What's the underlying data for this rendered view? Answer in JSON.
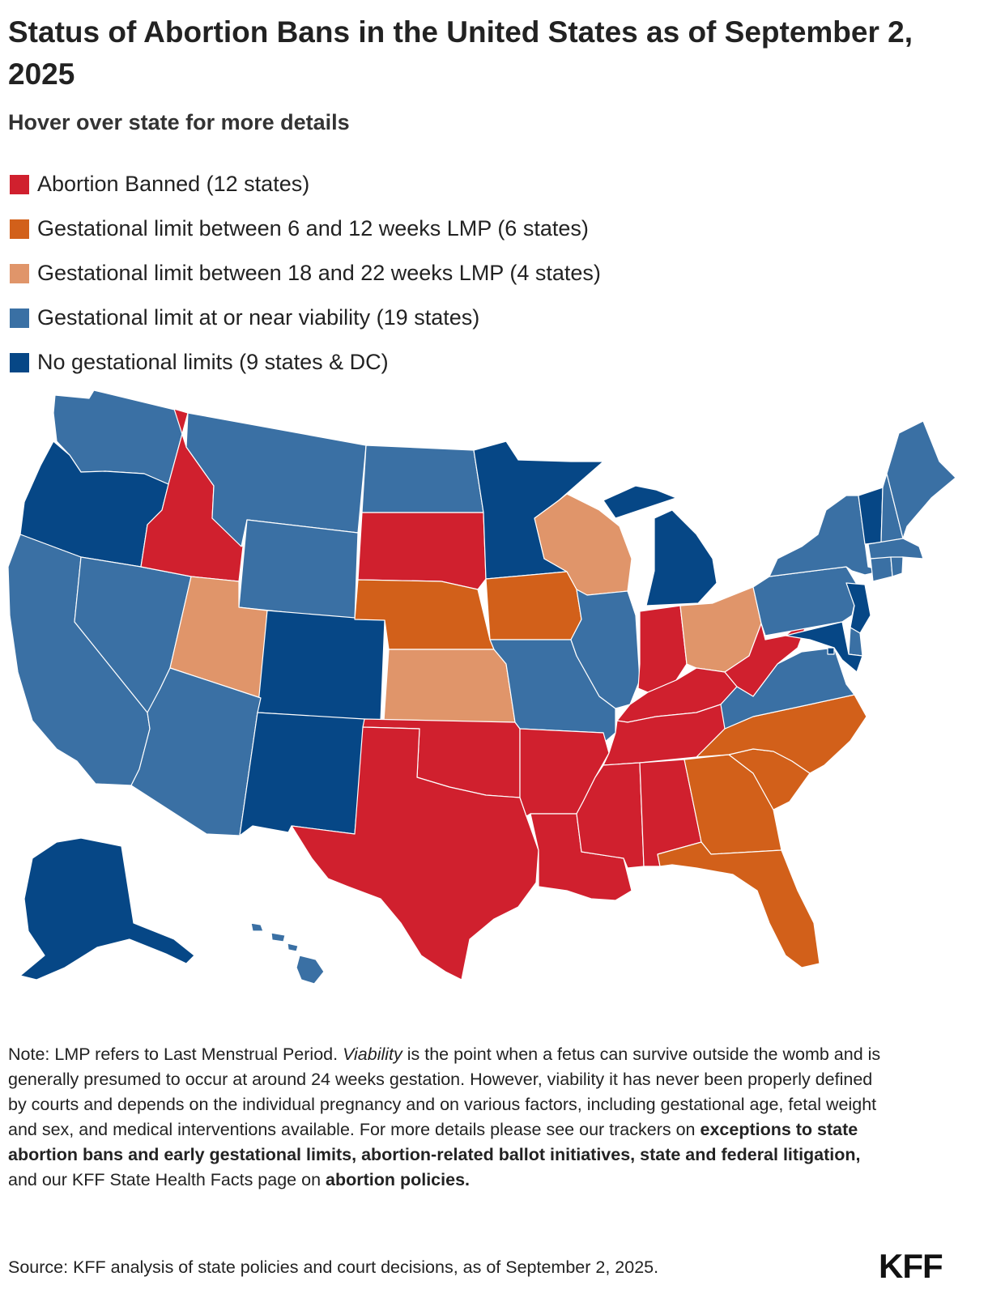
{
  "title": "Status of Abortion Bans in the United States as of September 2, 2025",
  "subtitle": "Hover over state for more details",
  "legend": [
    {
      "label": "Abortion Banned (12 states)",
      "color": "#d0202e"
    },
    {
      "label": "Gestational limit between 6 and 12 weeks LMP (6 states)",
      "color": "#d2601a"
    },
    {
      "label": "Gestational limit between 18 and 22 weeks LMP (4 states)",
      "color": "#e0956a"
    },
    {
      "label": "Gestational limit at or near viability (19 states)",
      "color": "#3a70a4"
    },
    {
      "label": "No gestational limits (9 states & DC)",
      "color": "#064786"
    }
  ],
  "colors": {
    "banned": "#d0202e",
    "limit_6_12": "#d2601a",
    "limit_18_22": "#e0956a",
    "viability": "#3a70a4",
    "none": "#064786"
  },
  "states": {
    "WA": "viability",
    "OR": "none",
    "CA": "viability",
    "NV": "viability",
    "ID": "banned",
    "MT": "viability",
    "WY": "viability",
    "UT": "limit_18_22",
    "AZ": "viability",
    "CO": "none",
    "NM": "none",
    "ND": "viability",
    "SD": "banned",
    "NE": "limit_6_12",
    "KS": "limit_18_22",
    "OK": "banned",
    "TX": "banned",
    "MN": "none",
    "IA": "limit_6_12",
    "MO": "viability",
    "AR": "banned",
    "LA": "banned",
    "WI": "limit_18_22",
    "IL": "viability",
    "MI": "none",
    "IN": "banned",
    "OH": "limit_18_22",
    "KY": "banned",
    "TN": "banned",
    "MS": "banned",
    "AL": "banned",
    "GA": "limit_6_12",
    "FL": "limit_6_12",
    "SC": "limit_6_12",
    "NC": "limit_6_12",
    "VA": "viability",
    "WV": "banned",
    "PA": "viability",
    "NY": "viability",
    "VT": "none",
    "NH": "viability",
    "ME": "viability",
    "MA": "viability",
    "CT": "viability",
    "RI": "viability",
    "NJ": "none",
    "DE": "viability",
    "MD": "none",
    "DC": "none",
    "AK": "none",
    "HI": "viability"
  },
  "note": {
    "part1": "Note: LMP refers to Last Menstrual Period. ",
    "viability_word": "Viability",
    "part2": " is the point when a fetus can survive outside the womb and is generally presumed to occur at around 24 weeks gestation. However, viability it has never been properly defined by courts and depends on the individual pregnancy and on various factors, including gestational age, fetal weight and sex, and medical interventions available. For more details please see our trackers on ",
    "link1": "exceptions to state abortion bans and early gestational limits, abortion-related ballot initiatives, state and federal litigation,",
    "part3": " and our KFF State Health Facts page on ",
    "link2": "abortion policies.",
    "source": "Source: KFF analysis of state policies and court decisions, as of September 2, 2025."
  },
  "logo": "KFF"
}
